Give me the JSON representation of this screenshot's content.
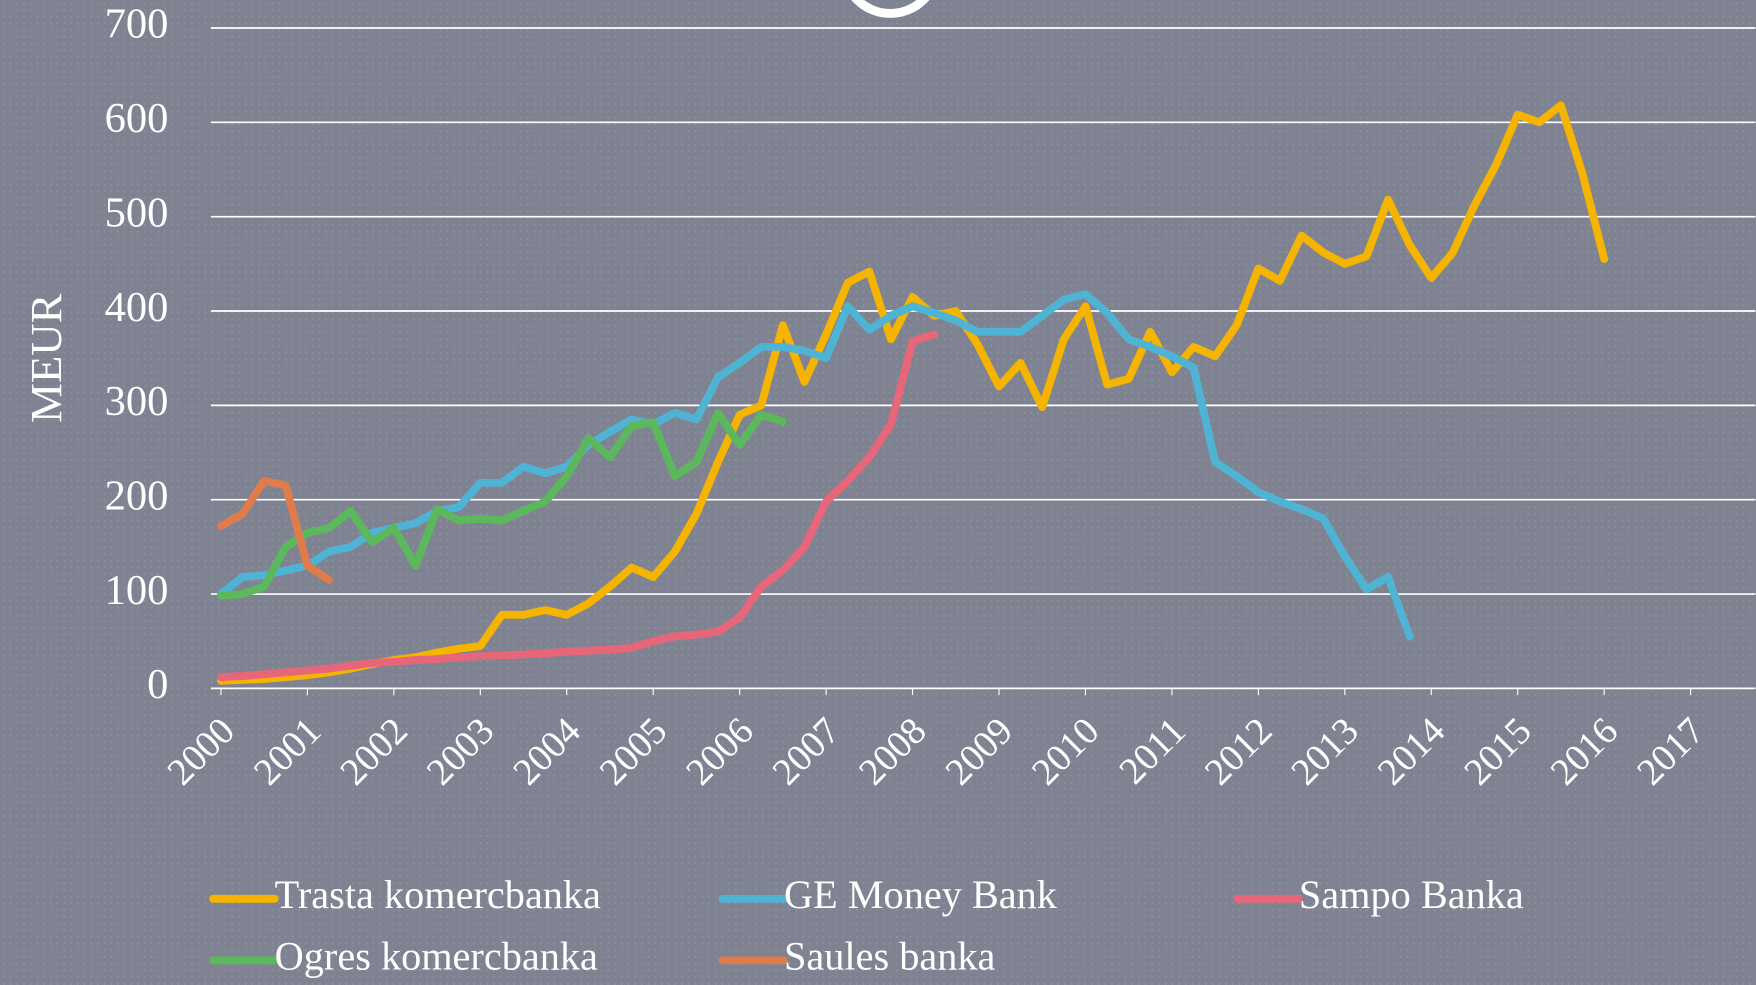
{
  "chart_data": {
    "type": "line",
    "y_label": "MEUR",
    "xlim": [
      2000,
      2017
    ],
    "xticks": [
      2000,
      2001,
      2002,
      2003,
      2004,
      2005,
      2006,
      2007,
      2008,
      2009,
      2010,
      2011,
      2012,
      2013,
      2014,
      2015,
      2016,
      2017
    ],
    "ylim": [
      0,
      700
    ],
    "yticks": [
      0,
      100,
      200,
      300,
      400,
      500,
      600,
      700
    ],
    "grid": true,
    "legend": "bottom",
    "series": [
      {
        "name": "Trasta komercbanka",
        "color": "#f5b400",
        "x": [
          2000,
          2000.25,
          2000.5,
          2000.75,
          2001,
          2001.25,
          2001.5,
          2001.75,
          2002,
          2002.25,
          2002.5,
          2002.75,
          2003,
          2003.25,
          2003.5,
          2003.75,
          2004,
          2004.25,
          2004.5,
          2004.75,
          2005,
          2005.25,
          2005.5,
          2005.75,
          2006,
          2006.25,
          2006.5,
          2006.75,
          2007,
          2007.25,
          2007.5,
          2007.75,
          2008,
          2008.25,
          2008.5,
          2008.75,
          2009,
          2009.25,
          2009.5,
          2009.75,
          2010,
          2010.25,
          2010.5,
          2010.75,
          2011,
          2011.25,
          2011.5,
          2011.75,
          2012,
          2012.25,
          2012.5,
          2012.75,
          2013,
          2013.25,
          2013.5,
          2013.75,
          2014,
          2014.25,
          2014.5,
          2014.75,
          2015,
          2015.25,
          2015.5,
          2015.75,
          2016
        ],
        "values": [
          8,
          9,
          10,
          12,
          14,
          17,
          21,
          26,
          30,
          33,
          38,
          42,
          45,
          78,
          78,
          83,
          78,
          90,
          108,
          128,
          118,
          145,
          185,
          240,
          290,
          300,
          385,
          325,
          375,
          430,
          442,
          370,
          415,
          395,
          400,
          365,
          320,
          345,
          298,
          370,
          405,
          322,
          328,
          378,
          335,
          362,
          352,
          385,
          445,
          432,
          480,
          462,
          450,
          458,
          518,
          470,
          435,
          462,
          512,
          555,
          608,
          600,
          618,
          545,
          455
        ]
      },
      {
        "name": "GE Money Bank",
        "color": "#4fb3d4",
        "x": [
          2000,
          2000.25,
          2000.5,
          2000.75,
          2001,
          2001.25,
          2001.5,
          2001.75,
          2002,
          2002.25,
          2002.5,
          2002.75,
          2003,
          2003.25,
          2003.5,
          2003.75,
          2004,
          2004.25,
          2004.5,
          2004.75,
          2005,
          2005.25,
          2005.5,
          2005.75,
          2006,
          2006.25,
          2006.5,
          2006.75,
          2007,
          2007.25,
          2007.5,
          2007.75,
          2008,
          2008.25,
          2008.5,
          2008.75,
          2009,
          2009.25,
          2009.5,
          2009.75,
          2010,
          2010.25,
          2010.5,
          2010.75,
          2011,
          2011.25,
          2011.5,
          2011.75,
          2012,
          2012.25,
          2012.5,
          2012.75,
          2013,
          2013.25,
          2013.5,
          2013.75
        ],
        "values": [
          100,
          118,
          120,
          125,
          130,
          145,
          150,
          165,
          170,
          175,
          188,
          192,
          218,
          218,
          235,
          228,
          235,
          258,
          272,
          285,
          280,
          292,
          285,
          330,
          345,
          362,
          362,
          358,
          350,
          405,
          380,
          395,
          405,
          398,
          390,
          378,
          378,
          378,
          395,
          412,
          418,
          398,
          370,
          362,
          352,
          340,
          240,
          225,
          208,
          198,
          190,
          180,
          140,
          105,
          118,
          55
        ]
      },
      {
        "name": "Sampo Banka",
        "color": "#e8667a",
        "x": [
          2000,
          2000.25,
          2000.5,
          2000.75,
          2001,
          2001.25,
          2001.5,
          2001.75,
          2002,
          2002.25,
          2002.5,
          2002.75,
          2003,
          2003.25,
          2003.5,
          2003.75,
          2004,
          2004.25,
          2004.5,
          2004.75,
          2005,
          2005.25,
          2005.5,
          2005.75,
          2006,
          2006.25,
          2006.5,
          2006.75,
          2007,
          2007.25,
          2007.5,
          2007.75,
          2008,
          2008.25
        ],
        "values": [
          12,
          13,
          15,
          17,
          19,
          21,
          24,
          27,
          28,
          30,
          31,
          33,
          34,
          35,
          36,
          37,
          39,
          40,
          41,
          43,
          50,
          55,
          57,
          60,
          75,
          108,
          125,
          150,
          198,
          220,
          245,
          280,
          368,
          375
        ]
      },
      {
        "name": "Ogres komercbanka",
        "color": "#5cb85c",
        "x": [
          2000,
          2000.25,
          2000.5,
          2000.75,
          2001,
          2001.25,
          2001.5,
          2001.75,
          2002,
          2002.25,
          2002.5,
          2002.75,
          2003,
          2003.25,
          2003.5,
          2003.75,
          2004,
          2004.25,
          2004.5,
          2004.75,
          2005,
          2005.25,
          2005.5,
          2005.75,
          2006,
          2006.25,
          2006.5
        ],
        "values": [
          98,
          100,
          108,
          150,
          165,
          170,
          188,
          155,
          170,
          130,
          190,
          178,
          180,
          178,
          188,
          198,
          225,
          265,
          245,
          278,
          282,
          225,
          240,
          292,
          258,
          290,
          283
        ]
      },
      {
        "name": "Saules banka",
        "color": "#e07b4c",
        "x": [
          2000,
          2000.25,
          2000.5,
          2000.75,
          2001,
          2001.25
        ],
        "values": [
          172,
          185,
          220,
          215,
          130,
          115
        ]
      }
    ]
  }
}
